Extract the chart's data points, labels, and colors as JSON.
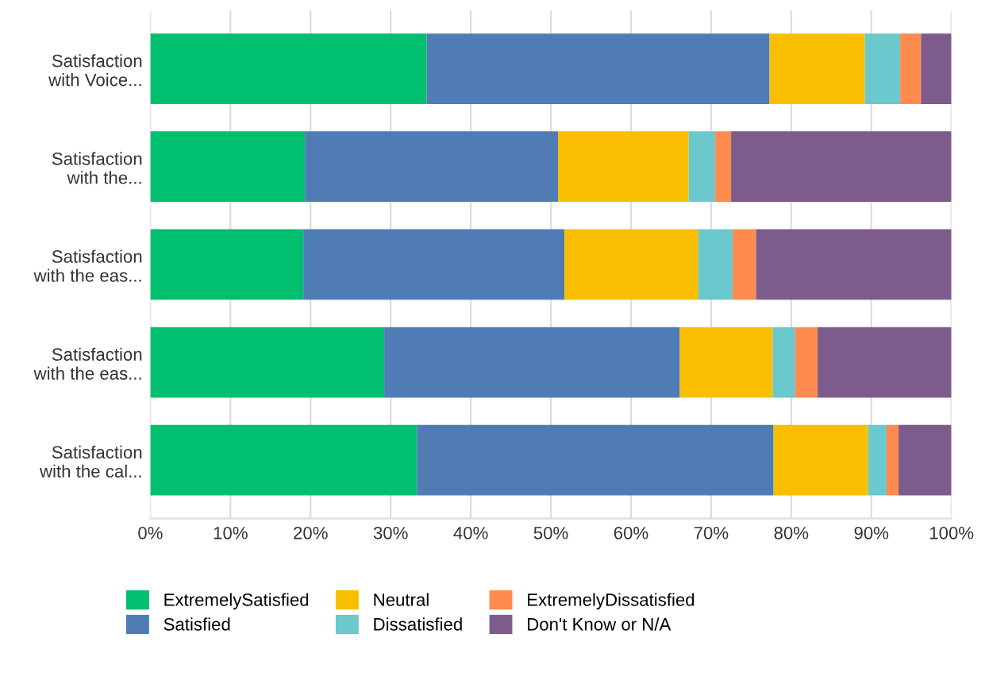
{
  "chart_data": {
    "type": "bar",
    "orientation": "horizontal",
    "stacked": true,
    "categories": [
      "Satisfaction\nwith Voice...",
      "Satisfaction\nwith the...",
      "Satisfaction\nwith the eas...",
      "Satisfaction\nwith the eas...",
      "Satisfaction\nwith the cal..."
    ],
    "series": [
      {
        "name": "ExtremelySatisfied",
        "color": "#00bf6f",
        "values": [
          34.5,
          19.3,
          19.1,
          29.2,
          33.3
        ]
      },
      {
        "name": "Satisfied",
        "color": "#507cb6",
        "values": [
          42.8,
          31.6,
          32.6,
          36.9,
          44.5
        ]
      },
      {
        "name": "Neutral",
        "color": "#f9be00",
        "values": [
          11.9,
          16.3,
          16.7,
          11.6,
          11.8
        ]
      },
      {
        "name": "Dissatisfied",
        "color": "#6bc8cd",
        "values": [
          4.4,
          3.3,
          4.3,
          2.8,
          2.3
        ]
      },
      {
        "name": "ExtremelyDissatisfied",
        "color": "#ff8b4f",
        "values": [
          2.6,
          2.0,
          2.9,
          2.8,
          1.5
        ]
      },
      {
        "name": "Don't Know or N/A",
        "color": "#7d5c8d",
        "values": [
          3.8,
          27.5,
          24.4,
          16.7,
          6.6
        ]
      }
    ],
    "xlim": [
      0,
      100
    ],
    "xticks": [
      {
        "value": 0,
        "label": "0%"
      },
      {
        "value": 10,
        "label": "10%"
      },
      {
        "value": 20,
        "label": "20%"
      },
      {
        "value": 30,
        "label": "30%"
      },
      {
        "value": 40,
        "label": "40%"
      },
      {
        "value": 50,
        "label": "50%"
      },
      {
        "value": 60,
        "label": "60%"
      },
      {
        "value": 70,
        "label": "70%"
      },
      {
        "value": 80,
        "label": "80%"
      },
      {
        "value": 90,
        "label": "90%"
      },
      {
        "value": 100,
        "label": "100%"
      }
    ],
    "grid": "x",
    "legend": "bottom"
  }
}
